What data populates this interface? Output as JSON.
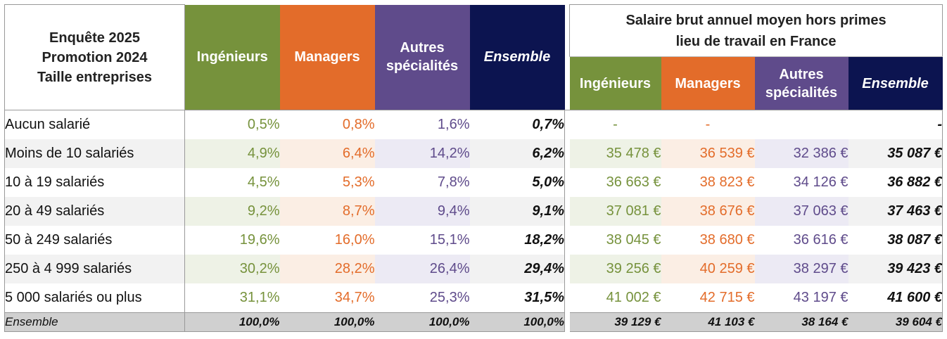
{
  "header": {
    "title_line1": "Enquête 2025",
    "title_line2": "Promotion 2024",
    "title_line3": "Taille entreprises",
    "col_ingenieurs": "Ingénieurs",
    "col_managers": "Managers",
    "col_autres_line1": "Autres",
    "col_autres_line2": "spécialités",
    "col_ensemble": "Ensemble",
    "salary_title_line1": "Salaire brut annuel moyen hors primes",
    "salary_title_line2": "lieu de travail en France"
  },
  "rows": [
    {
      "label": "Aucun salarié",
      "ing": "0,5%",
      "man": "0,8%",
      "aut": "1,6%",
      "ens": "0,7%",
      "s_ing": "-",
      "s_man": "-",
      "s_aut": "",
      "s_ens": "-"
    },
    {
      "label": "Moins de 10 salariés",
      "ing": "4,9%",
      "man": "6,4%",
      "aut": "14,2%",
      "ens": "6,2%",
      "s_ing": "35 478 €",
      "s_man": "36 539 €",
      "s_aut": "32 386 €",
      "s_ens": "35 087 €"
    },
    {
      "label": "10 à 19 salariés",
      "ing": "4,5%",
      "man": "5,3%",
      "aut": "7,8%",
      "ens": "5,0%",
      "s_ing": "36 663 €",
      "s_man": "38 823 €",
      "s_aut": "34 126 €",
      "s_ens": "36 882 €"
    },
    {
      "label": "20 à 49 salariés",
      "ing": "9,2%",
      "man": "8,7%",
      "aut": "9,4%",
      "ens": "9,1%",
      "s_ing": "37 081 €",
      "s_man": "38 676 €",
      "s_aut": "37 063 €",
      "s_ens": "37 463 €"
    },
    {
      "label": "50 à 249 salariés",
      "ing": "19,6%",
      "man": "16,0%",
      "aut": "15,1%",
      "ens": "18,2%",
      "s_ing": "38 045 €",
      "s_man": "38 680 €",
      "s_aut": "36 616 €",
      "s_ens": "38 087 €"
    },
    {
      "label": "250 à 4 999 salariés",
      "ing": "30,2%",
      "man": "28,2%",
      "aut": "26,4%",
      "ens": "29,4%",
      "s_ing": "39 256 €",
      "s_man": "40 259 €",
      "s_aut": "38 297 €",
      "s_ens": "39 423 €"
    },
    {
      "label": "5 000 salariés ou plus",
      "ing": "31,1%",
      "man": "34,7%",
      "aut": "25,3%",
      "ens": "31,5%",
      "s_ing": "41 002 €",
      "s_man": "42 715 €",
      "s_aut": "43 197 €",
      "s_ens": "41 600 €"
    }
  ],
  "total": {
    "label": "Ensemble",
    "ing": "100,0%",
    "man": "100,0%",
    "aut": "100,0%",
    "ens": "100,0%",
    "s_ing": "39 129 €",
    "s_man": "41 103 €",
    "s_aut": "38 164 €",
    "s_ens": "39 604 €"
  },
  "colors": {
    "ingenieurs": "#76923c",
    "managers": "#e36c2a",
    "autres": "#5f4b8b",
    "ensemble": "#0c1450"
  }
}
